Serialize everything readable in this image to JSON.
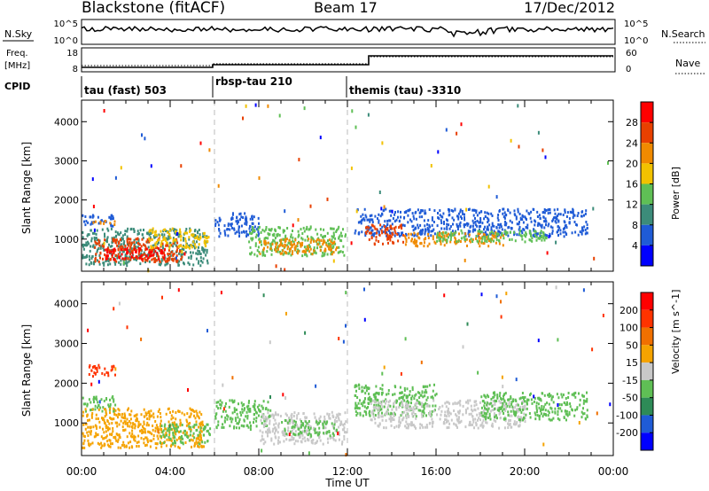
{
  "header": {
    "station": "Blackstone (fitACF)",
    "beam": "Beam 17",
    "date": "17/Dec/2012"
  },
  "top_panels": {
    "nsky_label": "N.Sky",
    "nsearch_label": "N.Search",
    "nsky_ticks": [
      "10^5",
      "10^0"
    ],
    "nsearch_ticks": [
      "10^5",
      "10^0"
    ],
    "freq_label_1": "Freq.",
    "freq_label_2": "[MHz]",
    "freq_ticks": [
      "18",
      "8"
    ],
    "nave_label": "Nave",
    "nave_ticks": [
      "60",
      "0"
    ],
    "cpid_label": "CPID",
    "cpid_segments": [
      {
        "label": "tau (fast) 503",
        "start_h": 0
      },
      {
        "label": "rbsp-tau 210",
        "start_h": 6
      },
      {
        "label": "themis (tau) -3310",
        "start_h": 12
      }
    ]
  },
  "chart_data": [
    {
      "type": "heatmap",
      "quantity": "Power",
      "colorbar_label": "Power [dB]",
      "colorbar_ticks": [
        "28",
        "24",
        "20",
        "16",
        "12",
        "8",
        "4"
      ],
      "colors": [
        "#0000ff",
        "#1f5bd6",
        "#3c8c7a",
        "#5fbf55",
        "#f2c200",
        "#f08a00",
        "#e84000",
        "#ff0000"
      ],
      "ylabel": "Slant Range [km]",
      "yticks": [
        "4000",
        "3000",
        "2000",
        "1000"
      ],
      "ylim": [
        180,
        4550
      ],
      "xlim_hours": [
        0,
        24
      ],
      "regions": [
        {
          "t": [
            0.0,
            1.4
          ],
          "r": [
            1350,
            1650
          ],
          "color": "#1f5bd6"
        },
        {
          "t": [
            0.3,
            1.6
          ],
          "r": [
            1400,
            1500
          ],
          "color": "#f08a00"
        },
        {
          "t": [
            0.0,
            5.7
          ],
          "r": [
            350,
            1300
          ],
          "color": "#3c8c7a"
        },
        {
          "t": [
            0.5,
            4.5
          ],
          "r": [
            450,
            1050
          ],
          "color": "#e84000"
        },
        {
          "t": [
            1.0,
            3.8
          ],
          "r": [
            500,
            800
          ],
          "color": "#ff0000"
        },
        {
          "t": [
            3.0,
            5.7
          ],
          "r": [
            800,
            1300
          ],
          "color": "#f2c200"
        },
        {
          "t": [
            6.0,
            8.0
          ],
          "r": [
            1100,
            1700
          ],
          "color": "#1f5bd6"
        },
        {
          "t": [
            7.5,
            11.9
          ],
          "r": [
            600,
            1350
          ],
          "color": "#5fbf55"
        },
        {
          "t": [
            8.0,
            11.5
          ],
          "r": [
            650,
            1050
          ],
          "color": "#f08a00"
        },
        {
          "t": [
            12.3,
            22.8
          ],
          "r": [
            1100,
            1800
          ],
          "color": "#1f5bd6"
        },
        {
          "t": [
            12.8,
            14.5
          ],
          "r": [
            900,
            1400
          ],
          "color": "#e84000"
        },
        {
          "t": [
            14.5,
            19.0
          ],
          "r": [
            850,
            1200
          ],
          "color": "#f08a00"
        },
        {
          "t": [
            16.0,
            21.0
          ],
          "r": [
            950,
            1250
          ],
          "color": "#5fbf55"
        }
      ]
    },
    {
      "type": "heatmap",
      "quantity": "Velocity",
      "colorbar_label": "Velocity [m s^-1]",
      "colorbar_ticks": [
        "200",
        "100",
        "50",
        "15",
        "-15",
        "-50",
        "-100",
        "-200"
      ],
      "colors": [
        "#0000ff",
        "#1f5bd6",
        "#2e8b57",
        "#5fbf55",
        "#c8c8c8",
        "#f5a300",
        "#f07000",
        "#ff3300",
        "#ff0000"
      ],
      "ylabel": "Slant Range [km]",
      "yticks": [
        "4000",
        "3000",
        "2000",
        "1000"
      ],
      "ylim": [
        180,
        4550
      ],
      "xlim_hours": [
        0,
        24
      ],
      "regions": [
        {
          "t": [
            0.2,
            1.5
          ],
          "r": [
            2200,
            2500
          ],
          "color": "#ff3300"
        },
        {
          "t": [
            0.0,
            1.5
          ],
          "r": [
            1300,
            1700
          ],
          "color": "#5fbf55"
        },
        {
          "t": [
            0.0,
            5.5
          ],
          "r": [
            400,
            1400
          ],
          "color": "#f5a300"
        },
        {
          "t": [
            3.5,
            5.8
          ],
          "r": [
            500,
            1000
          ],
          "color": "#5fbf55"
        },
        {
          "t": [
            6.0,
            8.5
          ],
          "r": [
            900,
            1600
          ],
          "color": "#5fbf55"
        },
        {
          "t": [
            8.0,
            11.9
          ],
          "r": [
            500,
            1300
          ],
          "color": "#c8c8c8"
        },
        {
          "t": [
            9.0,
            11.5
          ],
          "r": [
            700,
            1100
          ],
          "color": "#5fbf55"
        },
        {
          "t": [
            12.3,
            16.0
          ],
          "r": [
            1200,
            2000
          ],
          "color": "#5fbf55"
        },
        {
          "t": [
            13.0,
            20.0
          ],
          "r": [
            900,
            1600
          ],
          "color": "#c8c8c8"
        },
        {
          "t": [
            18.0,
            22.8
          ],
          "r": [
            1100,
            1800
          ],
          "color": "#5fbf55"
        }
      ]
    }
  ],
  "xaxis": {
    "label": "Time UT",
    "ticks": [
      "00:00",
      "04:00",
      "08:00",
      "12:00",
      "16:00",
      "20:00",
      "00:00"
    ]
  }
}
